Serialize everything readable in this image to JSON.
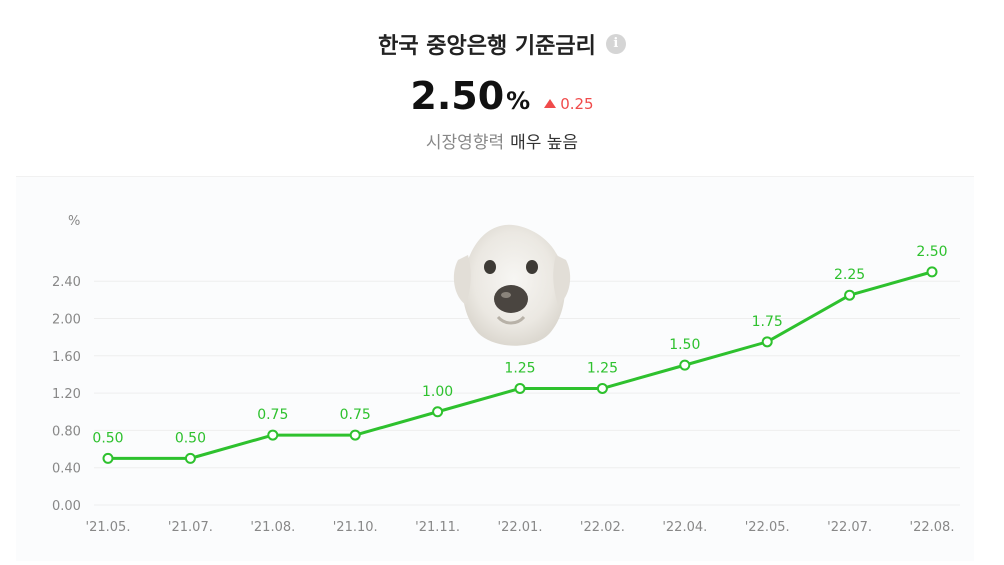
{
  "header": {
    "title": "한국 중앙은행 기준금리",
    "value": "2.50",
    "unit": "%",
    "change": "0.25",
    "change_direction": "up",
    "impact_label": "시장영향력",
    "impact_value": "매우 높음"
  },
  "icons": {
    "info": "info-icon",
    "mascot": "dog-mascot-image"
  },
  "colors": {
    "line": "#2ec12e",
    "label": "#2ec12e",
    "up": "#f04b4b",
    "axis_text": "#888888"
  },
  "chart_data": {
    "type": "line",
    "ylabel": "%",
    "ylim": [
      0,
      2.8
    ],
    "yticks": [
      "0.00",
      "0.40",
      "0.80",
      "1.20",
      "1.60",
      "2.00",
      "2.40"
    ],
    "categories": [
      "'21.05.",
      "'21.07.",
      "'21.08.",
      "'21.10.",
      "'21.11.",
      "'22.01.",
      "'22.02.",
      "'22.04.",
      "'22.05.",
      "'22.07.",
      "'22.08."
    ],
    "values": [
      0.5,
      0.5,
      0.75,
      0.75,
      1.0,
      1.25,
      1.25,
      1.5,
      1.75,
      2.25,
      2.5
    ],
    "data_labels": [
      "0.50",
      "0.50",
      "0.75",
      "0.75",
      "1.00",
      "1.25",
      "1.25",
      "1.50",
      "1.75",
      "2.25",
      "2.50"
    ],
    "grid": true
  }
}
